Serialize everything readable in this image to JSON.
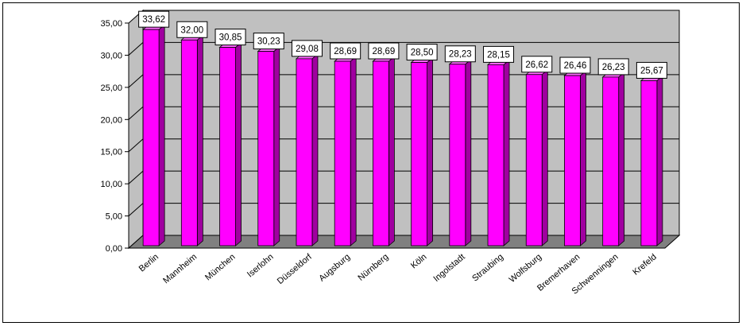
{
  "chart_data": {
    "type": "bar",
    "title": "",
    "xlabel": "",
    "ylabel": "",
    "ylim": [
      0,
      35
    ],
    "yticks": [
      "0,00",
      "5,00",
      "10,00",
      "15,00",
      "20,00",
      "25,00",
      "30,00",
      "35,00"
    ],
    "grid": true,
    "legend": "none",
    "categories": [
      "Berlin",
      "Mannheim",
      "München",
      "Iserlohn",
      "Düsseldorf",
      "Augsburg",
      "Nürnberg",
      "Köln",
      "Ingolstadt",
      "Straubing",
      "Wolfsburg",
      "Bremerhaven",
      "Schwenningen",
      "Krefeld"
    ],
    "values": [
      33.62,
      32.0,
      30.85,
      30.23,
      29.08,
      28.69,
      28.69,
      28.5,
      28.23,
      28.15,
      26.62,
      26.46,
      26.23,
      25.67
    ],
    "value_labels": [
      "33,62",
      "32,00",
      "30,85",
      "30,23",
      "29,08",
      "28,69",
      "28,69",
      "28,50",
      "28,23",
      "28,15",
      "26,62",
      "26,46",
      "26,23",
      "25,67"
    ],
    "colors": {
      "bar_front": "#ff00ff",
      "bar_side": "#a000a0",
      "bar_top": "#ff66ff",
      "wall": "#c0c0c0",
      "floor": "#808080",
      "grid": "#000000"
    }
  }
}
